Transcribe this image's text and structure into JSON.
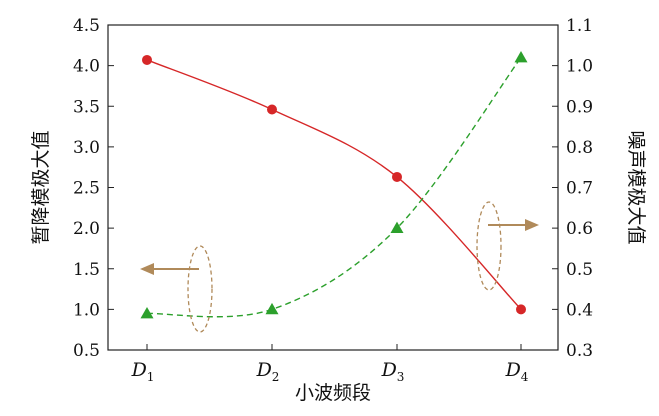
{
  "chart_data": {
    "type": "line",
    "categories": [
      {
        "main": "D",
        "sub": "1"
      },
      {
        "main": "D",
        "sub": "2"
      },
      {
        "main": "D",
        "sub": "3"
      },
      {
        "main": "D",
        "sub": "4"
      }
    ],
    "xlabel": "小波频段",
    "ylabel_left": "暂降模极大值",
    "ylabel_right": "噪声模极大值",
    "ylim_left": [
      0.5,
      4.5
    ],
    "ylim_right": [
      0.3,
      1.1
    ],
    "yticks_left": [
      "0.5",
      "1.0",
      "1.5",
      "2.0",
      "2.5",
      "3.0",
      "3.5",
      "4.0",
      "4.5"
    ],
    "yticks_right": [
      "0.3",
      "0.4",
      "0.5",
      "0.6",
      "0.7",
      "0.8",
      "0.9",
      "1.0",
      "1.1"
    ],
    "series": [
      {
        "axis": "left",
        "values": [
          4.07,
          3.46,
          2.63,
          1.0
        ],
        "color": "#d62728",
        "line_style": "solid",
        "marker": "circle"
      },
      {
        "axis": "right",
        "values": [
          0.39,
          0.4,
          0.6,
          1.02
        ],
        "color": "#2ca02c",
        "line_style": "dashed",
        "marker": "triangle"
      }
    ],
    "annotation_color": "#b08a5a",
    "grid": false,
    "legend": "none"
  }
}
